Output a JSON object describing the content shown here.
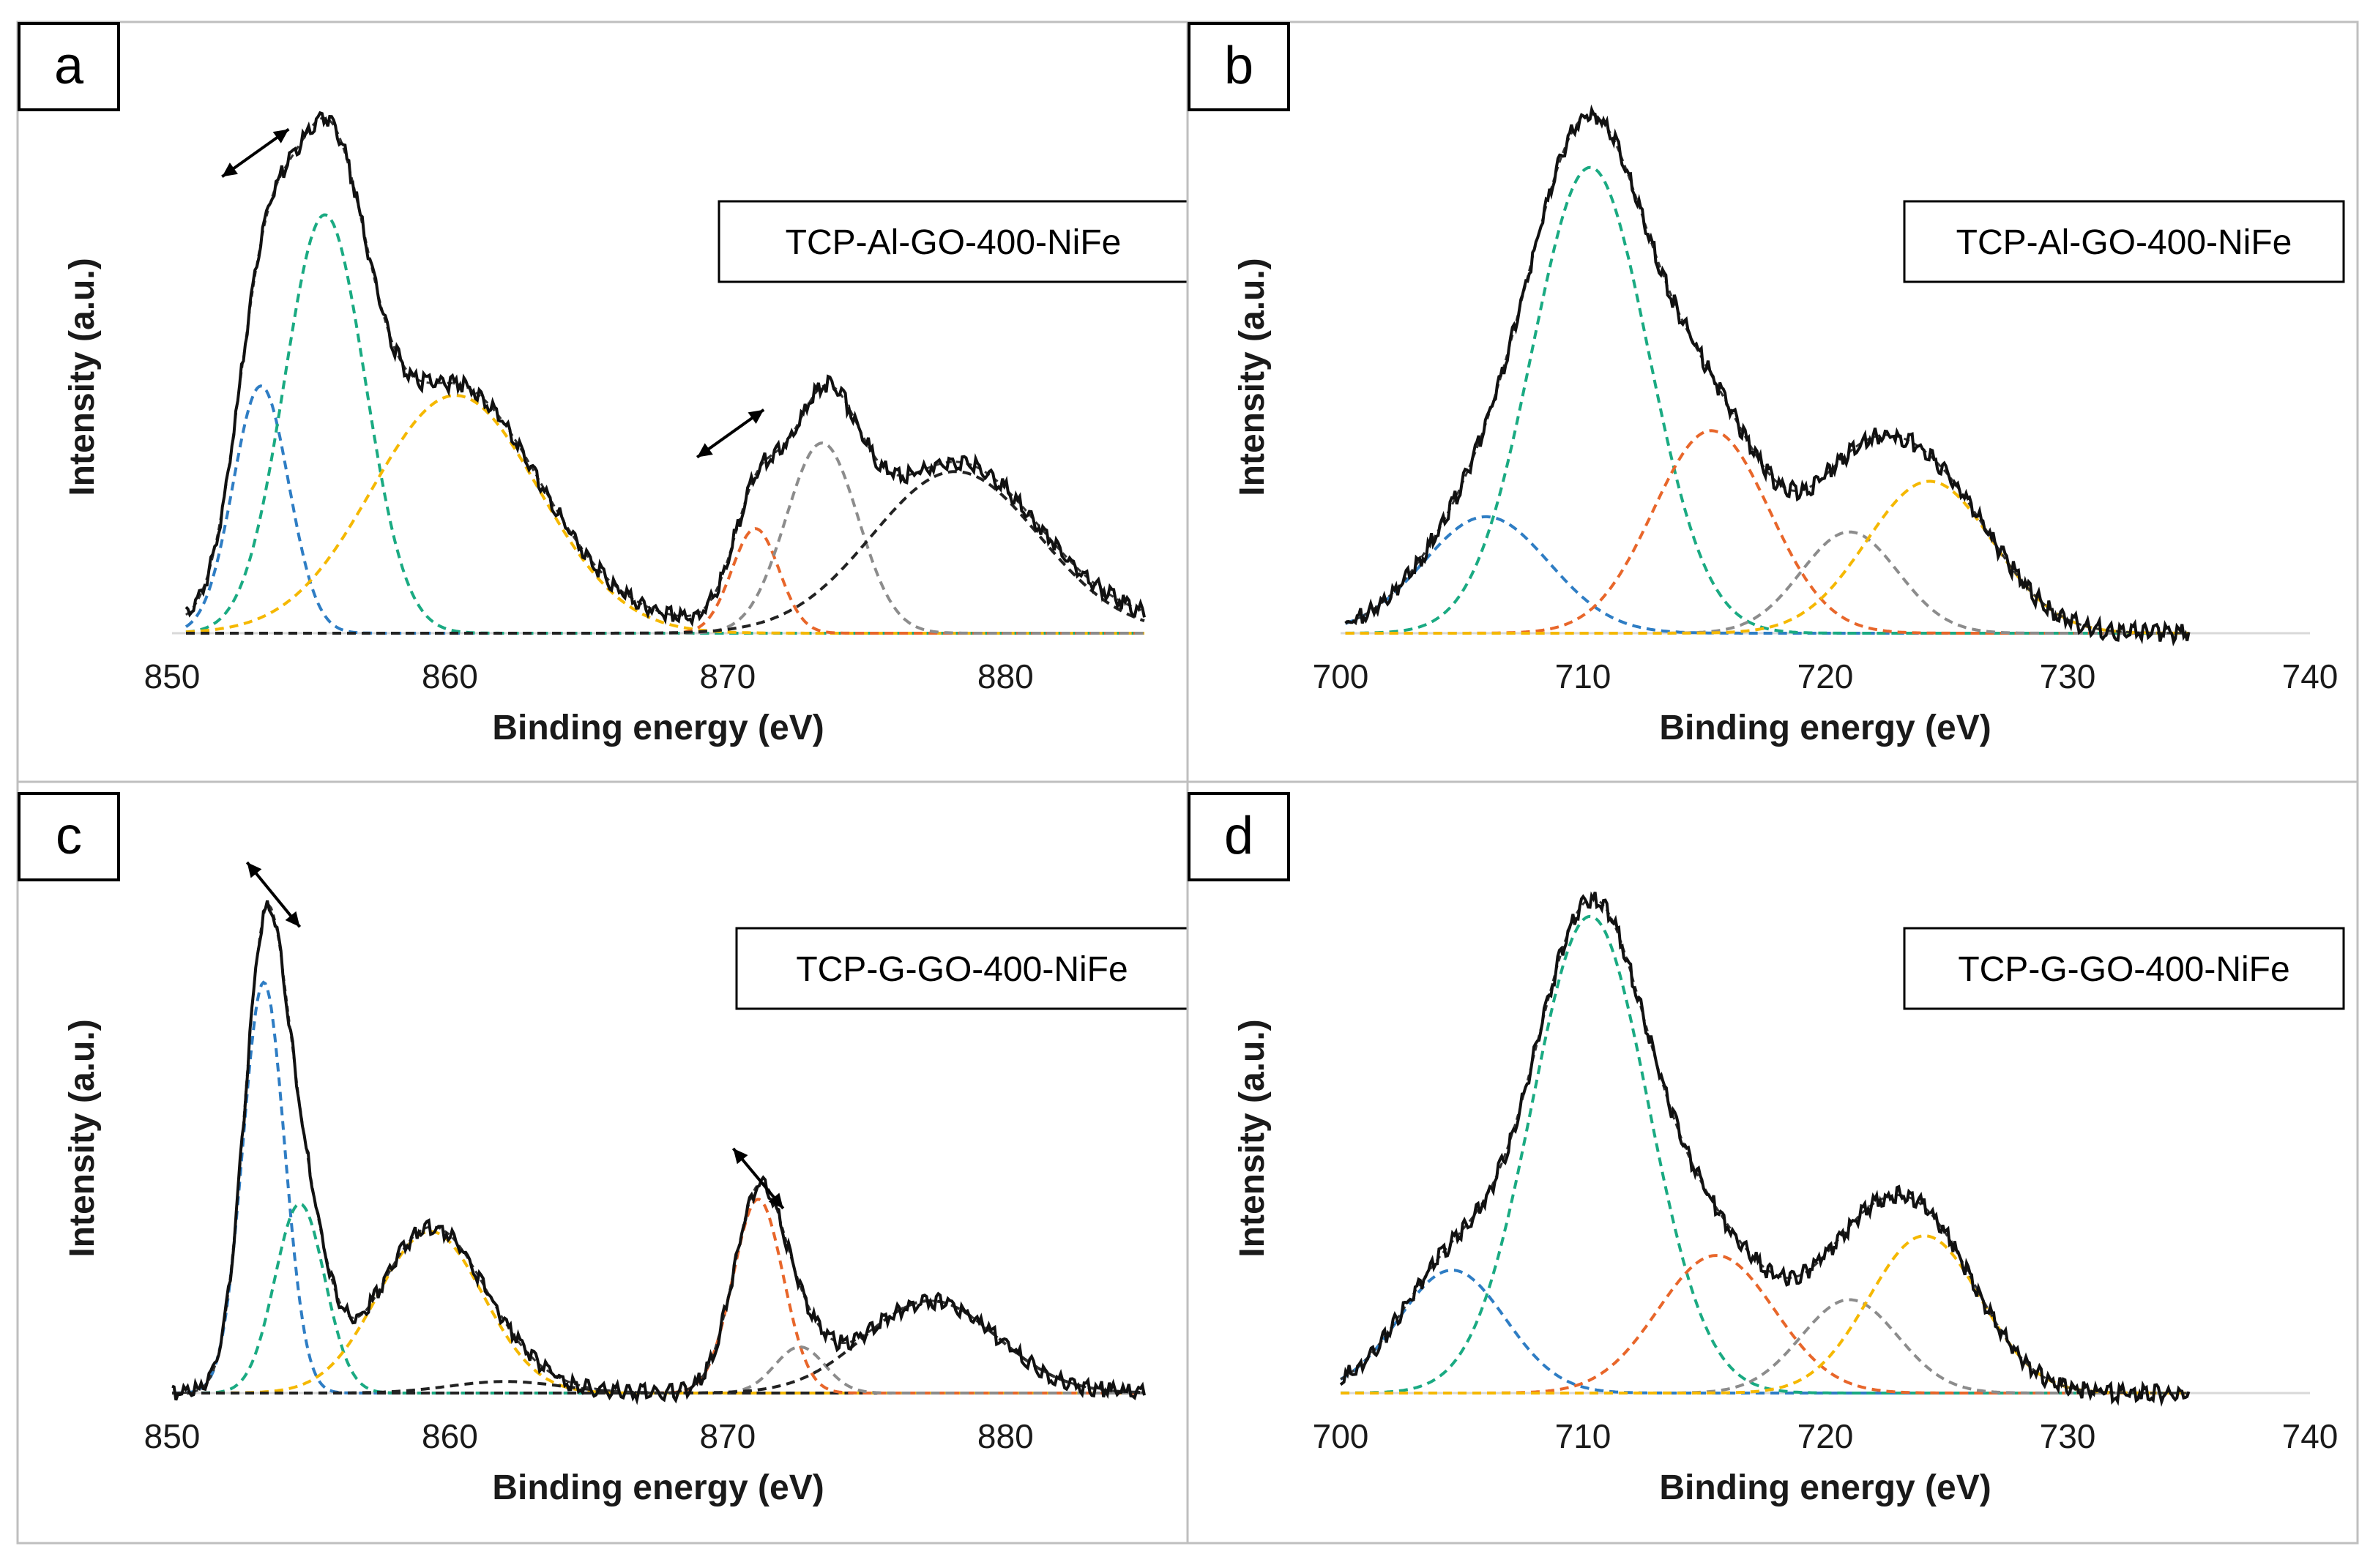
{
  "chart_data": [
    {
      "panel": "a",
      "type": "line",
      "sample_label": "TCP-Al-GO-400-NiFe",
      "xlabel": "Binding energy (eV)",
      "ylabel": "Intensity (a.u.)",
      "xlim": [
        850,
        885
      ],
      "xticks": [
        850,
        860,
        870,
        880
      ],
      "ylim": [
        0,
        1.15
      ],
      "data_range": [
        850.5,
        885
      ],
      "background": 0.02,
      "peaks": [
        {
          "name": "blue",
          "color": "#2e7dc4",
          "center": 853.2,
          "width": 1.0,
          "height": 0.52
        },
        {
          "name": "green",
          "color": "#1aaa82",
          "center": 855.5,
          "width": 1.45,
          "height": 0.88
        },
        {
          "name": "yellow",
          "color": "#f5b800",
          "center": 860.2,
          "width": 3.0,
          "height": 0.5
        },
        {
          "name": "orange",
          "color": "#e8662a",
          "center": 871.0,
          "width": 0.85,
          "height": 0.22
        },
        {
          "name": "gray",
          "color": "#8c8c8c",
          "center": 873.4,
          "width": 1.3,
          "height": 0.4
        },
        {
          "name": "black",
          "color": "#222222",
          "center": 878.2,
          "width": 3.0,
          "height": 0.34
        }
      ],
      "arrows": [
        {
          "x1": 851.8,
          "y1": 0.96,
          "x2": 854.2,
          "y2": 1.06
        },
        {
          "x1": 868.9,
          "y1": 0.37,
          "x2": 871.3,
          "y2": 0.47
        }
      ]
    },
    {
      "panel": "b",
      "type": "line",
      "sample_label": "TCP-Al-GO-400-NiFe",
      "xlabel": "Binding energy (eV)",
      "ylabel": "Intensity (a.u.)",
      "xlim": [
        700,
        740
      ],
      "xticks": [
        700,
        710,
        720,
        730,
        740
      ],
      "ylim": [
        0,
        1.08
      ],
      "data_range": [
        700.2,
        735
      ],
      "background": 0.0,
      "peaks": [
        {
          "name": "blue",
          "color": "#2e7dc4",
          "center": 706.0,
          "width": 2.6,
          "height": 0.23
        },
        {
          "name": "green",
          "color": "#1aaa82",
          "center": 710.3,
          "width": 2.4,
          "height": 0.92
        },
        {
          "name": "orange",
          "color": "#e8662a",
          "center": 715.3,
          "width": 2.4,
          "height": 0.4
        },
        {
          "name": "gray",
          "color": "#8c8c8c",
          "center": 721.0,
          "width": 2.0,
          "height": 0.2
        },
        {
          "name": "yellow",
          "color": "#f5b800",
          "center": 724.3,
          "width": 2.6,
          "height": 0.3
        }
      ],
      "arrows": []
    },
    {
      "panel": "c",
      "type": "line",
      "sample_label": "TCP-G-GO-400-NiFe",
      "xlabel": "Binding energy (eV)",
      "ylabel": "Intensity (a.u.)",
      "xlim": [
        850,
        885
      ],
      "xticks": [
        850,
        860,
        870,
        880
      ],
      "ylim": [
        0,
        1.15
      ],
      "data_range": [
        850,
        885
      ],
      "background": 0.0,
      "peaks": [
        {
          "name": "blue",
          "color": "#2e7dc4",
          "center": 853.3,
          "width": 0.75,
          "height": 0.89
        },
        {
          "name": "green",
          "color": "#1aaa82",
          "center": 854.6,
          "width": 0.9,
          "height": 0.41
        },
        {
          "name": "yellow",
          "color": "#f5b800",
          "center": 859.3,
          "width": 1.9,
          "height": 0.35
        },
        {
          "name": "sat",
          "color": "#222222",
          "center": 862.0,
          "width": 2.0,
          "height": 0.025
        },
        {
          "name": "orange",
          "color": "#e8662a",
          "center": 871.1,
          "width": 0.9,
          "height": 0.42
        },
        {
          "name": "gray",
          "color": "#8c8c8c",
          "center": 872.6,
          "width": 0.9,
          "height": 0.1
        },
        {
          "name": "black",
          "color": "#222222",
          "center": 877.3,
          "width": 2.4,
          "height": 0.2
        }
      ],
      "arrows": [
        {
          "x1": 852.7,
          "y1": 1.15,
          "x2": 854.6,
          "y2": 1.01
        },
        {
          "x1": 870.2,
          "y1": 0.53,
          "x2": 872.0,
          "y2": 0.4
        }
      ]
    },
    {
      "panel": "d",
      "type": "line",
      "sample_label": "TCP-G-GO-400-NiFe",
      "xlabel": "Binding energy (eV)",
      "ylabel": "Intensity (a.u.)",
      "xlim": [
        700,
        740
      ],
      "xticks": [
        700,
        710,
        720,
        730,
        740
      ],
      "ylim": [
        0,
        1.08
      ],
      "data_range": [
        700,
        735
      ],
      "background": 0.0,
      "peaks": [
        {
          "name": "blue",
          "color": "#2e7dc4",
          "center": 704.6,
          "width": 2.2,
          "height": 0.25
        },
        {
          "name": "green",
          "color": "#1aaa82",
          "center": 710.3,
          "width": 2.4,
          "height": 0.97
        },
        {
          "name": "orange",
          "color": "#e8662a",
          "center": 715.5,
          "width": 2.4,
          "height": 0.28
        },
        {
          "name": "gray",
          "color": "#8c8c8c",
          "center": 721.0,
          "width": 2.0,
          "height": 0.19
        },
        {
          "name": "yellow",
          "color": "#f5b800",
          "center": 724.1,
          "width": 2.3,
          "height": 0.32
        }
      ],
      "arrows": []
    }
  ]
}
